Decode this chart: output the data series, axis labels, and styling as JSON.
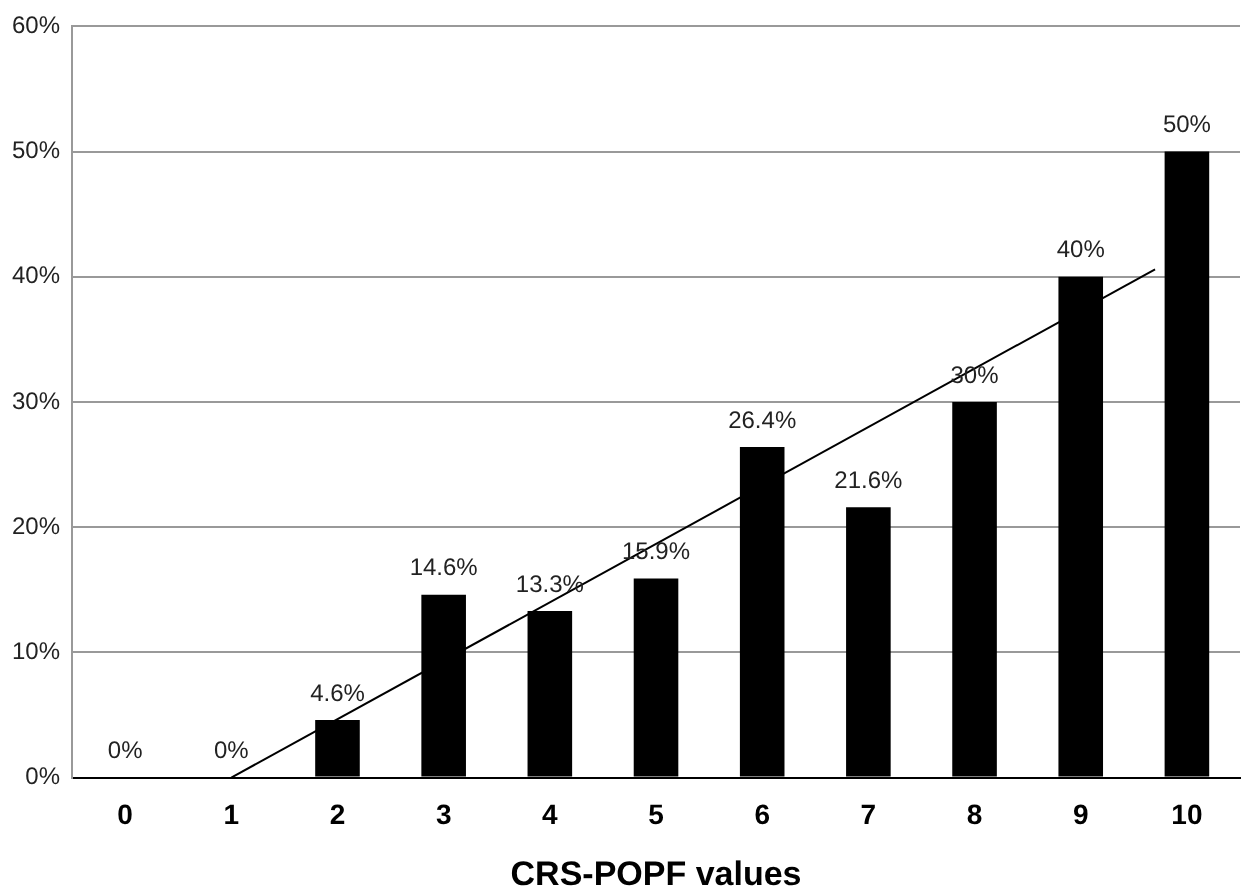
{
  "chart_data": {
    "type": "bar",
    "xlabel": "CRS-POPF values",
    "x": [
      0,
      1,
      2,
      3,
      4,
      5,
      6,
      7,
      8,
      9,
      10
    ],
    "xlim": [
      -0.5,
      10.5
    ],
    "xticks": [
      0,
      1,
      2,
      3,
      4,
      5,
      6,
      7,
      8,
      9,
      10
    ],
    "series": [
      {
        "color": "#000000",
        "values": [
          0,
          0,
          4.6,
          14.6,
          13.3,
          15.9,
          26.4,
          21.6,
          30,
          40,
          50
        ],
        "value_labels": [
          "0%",
          "0%",
          "4.6%",
          "14.6%",
          "13.3%",
          "15.9%",
          "26.4%",
          "21.6%",
          "30%",
          "40%",
          "50%"
        ]
      },
      {
        "type": "line",
        "color": "#000000",
        "x": [
          1,
          9.7
        ],
        "values": [
          0,
          40.6
        ]
      }
    ],
    "ylim": [
      0,
      60
    ],
    "yticks": [
      {
        "value": 0,
        "label": "0%"
      },
      {
        "value": 10,
        "label": "10%"
      },
      {
        "value": 20,
        "label": "20%"
      },
      {
        "value": 30,
        "label": "30%"
      },
      {
        "value": 40,
        "label": "40%"
      },
      {
        "value": 50,
        "label": "50%"
      },
      {
        "value": 60,
        "label": "60%"
      }
    ],
    "grid": "y",
    "legend": false
  }
}
